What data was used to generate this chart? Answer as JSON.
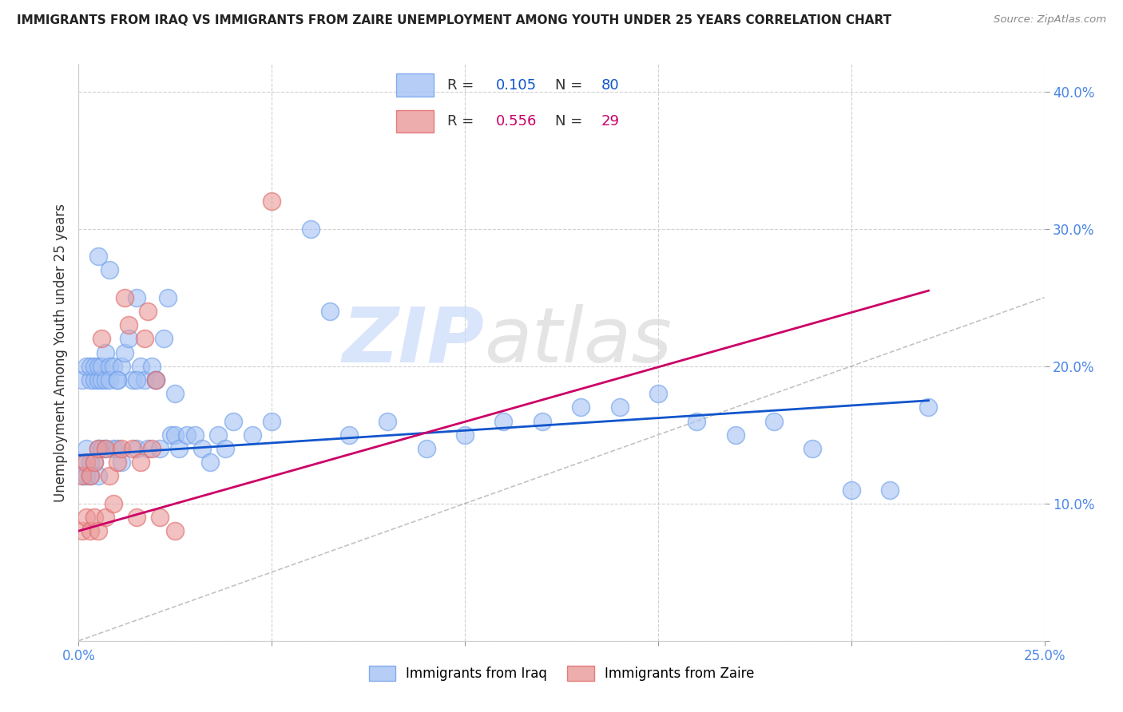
{
  "title": "IMMIGRANTS FROM IRAQ VS IMMIGRANTS FROM ZAIRE UNEMPLOYMENT AMONG YOUTH UNDER 25 YEARS CORRELATION CHART",
  "source": "Source: ZipAtlas.com",
  "ylabel": "Unemployment Among Youth under 25 years",
  "xlim": [
    0.0,
    0.25
  ],
  "ylim": [
    0.0,
    0.42
  ],
  "watermark_top": "ZIP",
  "watermark_bot": "atlas",
  "iraq_color": "#a4c2f4",
  "zaire_color": "#ea9999",
  "iraq_edge_color": "#6d9eeb",
  "zaire_edge_color": "#e06666",
  "iraq_line_color": "#1155cc",
  "zaire_line_color": "#cc0066",
  "tick_color": "#4a86e8",
  "iraq_R": 0.105,
  "iraq_N": 80,
  "zaire_R": 0.556,
  "zaire_N": 29,
  "iraq_x": [
    0.001,
    0.001,
    0.001,
    0.002,
    0.002,
    0.002,
    0.003,
    0.003,
    0.003,
    0.003,
    0.004,
    0.004,
    0.004,
    0.005,
    0.005,
    0.005,
    0.005,
    0.006,
    0.006,
    0.006,
    0.007,
    0.007,
    0.007,
    0.008,
    0.008,
    0.009,
    0.009,
    0.01,
    0.01,
    0.011,
    0.011,
    0.012,
    0.013,
    0.014,
    0.015,
    0.015,
    0.016,
    0.017,
    0.018,
    0.019,
    0.02,
    0.021,
    0.022,
    0.023,
    0.024,
    0.025,
    0.026,
    0.028,
    0.03,
    0.032,
    0.034,
    0.036,
    0.038,
    0.04,
    0.045,
    0.05,
    0.06,
    0.065,
    0.07,
    0.08,
    0.09,
    0.1,
    0.11,
    0.12,
    0.13,
    0.14,
    0.15,
    0.16,
    0.17,
    0.18,
    0.19,
    0.2,
    0.21,
    0.22,
    0.005,
    0.008,
    0.01,
    0.015,
    0.02,
    0.025
  ],
  "iraq_y": [
    0.12,
    0.13,
    0.19,
    0.12,
    0.2,
    0.14,
    0.13,
    0.19,
    0.2,
    0.12,
    0.19,
    0.13,
    0.2,
    0.12,
    0.19,
    0.2,
    0.14,
    0.19,
    0.14,
    0.2,
    0.19,
    0.21,
    0.14,
    0.2,
    0.19,
    0.14,
    0.2,
    0.19,
    0.14,
    0.13,
    0.2,
    0.21,
    0.22,
    0.19,
    0.25,
    0.14,
    0.2,
    0.19,
    0.14,
    0.2,
    0.19,
    0.14,
    0.22,
    0.25,
    0.15,
    0.15,
    0.14,
    0.15,
    0.15,
    0.14,
    0.13,
    0.15,
    0.14,
    0.16,
    0.15,
    0.16,
    0.3,
    0.24,
    0.15,
    0.16,
    0.14,
    0.15,
    0.16,
    0.16,
    0.17,
    0.17,
    0.18,
    0.16,
    0.15,
    0.16,
    0.14,
    0.11,
    0.11,
    0.17,
    0.28,
    0.27,
    0.19,
    0.19,
    0.19,
    0.18
  ],
  "zaire_x": [
    0.001,
    0.001,
    0.002,
    0.002,
    0.003,
    0.003,
    0.004,
    0.004,
    0.005,
    0.005,
    0.006,
    0.007,
    0.007,
    0.008,
    0.009,
    0.01,
    0.011,
    0.012,
    0.013,
    0.014,
    0.015,
    0.016,
    0.017,
    0.018,
    0.019,
    0.02,
    0.021,
    0.025,
    0.05
  ],
  "zaire_y": [
    0.12,
    0.08,
    0.13,
    0.09,
    0.12,
    0.08,
    0.13,
    0.09,
    0.14,
    0.08,
    0.22,
    0.14,
    0.09,
    0.12,
    0.1,
    0.13,
    0.14,
    0.25,
    0.23,
    0.14,
    0.09,
    0.13,
    0.22,
    0.24,
    0.14,
    0.19,
    0.09,
    0.08,
    0.32
  ],
  "iraq_line_x": [
    0.0,
    0.22
  ],
  "iraq_line_y": [
    0.135,
    0.175
  ],
  "zaire_line_x": [
    0.0,
    0.22
  ],
  "zaire_line_y": [
    0.08,
    0.255
  ],
  "diag_line_x": [
    0.0,
    0.25
  ],
  "diag_line_y": [
    0.0,
    0.25
  ]
}
